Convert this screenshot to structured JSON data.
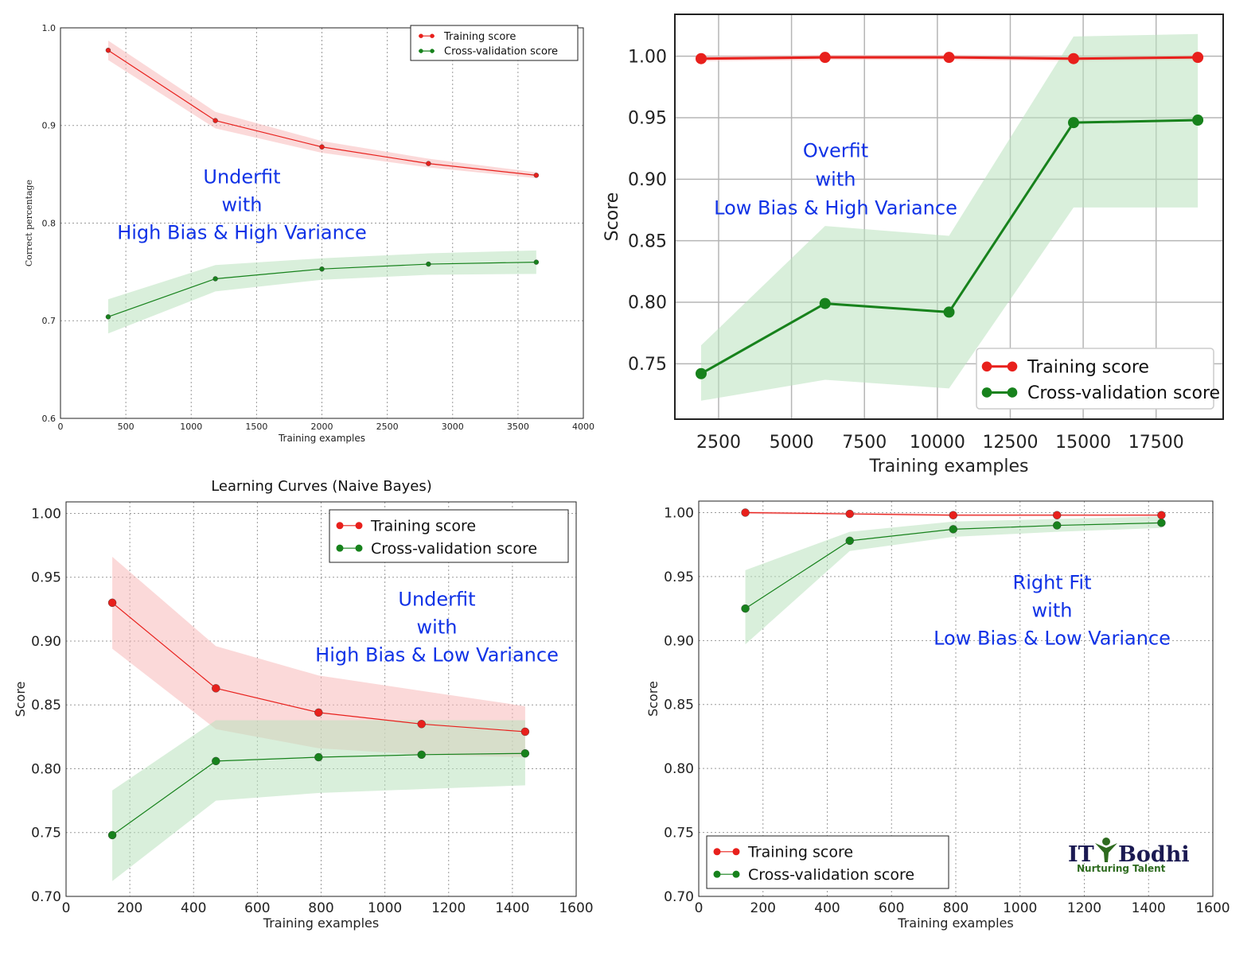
{
  "colors": {
    "training": "#e8201c",
    "cv": "#17821c",
    "training_band": "#f7b9b9",
    "cv_band": "#b9e2bd",
    "annotation": "#1032e6",
    "logo_dark": "#1b1a52",
    "logo_green": "#2e6b1f"
  },
  "logo": {
    "text_main": "IT Bodhi",
    "tagline": "Nurturing Talent",
    "icon": "person-arms-raised-icon"
  },
  "chart_data": [
    {
      "type": "line",
      "title": "",
      "xlabel": "Training examples",
      "ylabel": "Correct percentage",
      "xlim": [
        0,
        4000
      ],
      "ylim": [
        0.6,
        1.0
      ],
      "xticks": [
        "0",
        "500",
        "1000",
        "1500",
        "2000",
        "2500",
        "3000",
        "3500",
        "4000"
      ],
      "yticks": [
        "0.6",
        "0.7",
        "0.8",
        "0.9",
        "1.0"
      ],
      "grid": "dotted",
      "legend": "top-right",
      "annotation": [
        "Underfit",
        "with",
        "High Bias & High Variance"
      ],
      "x": [
        365,
        1185,
        2000,
        2815,
        3640
      ],
      "series": [
        {
          "name": "Training score",
          "values": [
            0.977,
            0.905,
            0.878,
            0.861,
            0.849
          ],
          "lower": [
            0.967,
            0.897,
            0.872,
            0.857,
            0.846
          ],
          "upper": [
            0.987,
            0.914,
            0.884,
            0.866,
            0.852
          ]
        },
        {
          "name": "Cross-validation score",
          "values": [
            0.704,
            0.743,
            0.753,
            0.758,
            0.76
          ],
          "lower": [
            0.687,
            0.73,
            0.742,
            0.747,
            0.748
          ],
          "upper": [
            0.722,
            0.757,
            0.764,
            0.769,
            0.772
          ]
        }
      ]
    },
    {
      "type": "line",
      "title": "",
      "xlabel": "Training examples",
      "ylabel": "Score",
      "xlim": [
        1000,
        19800
      ],
      "ylim": [
        0.705,
        1.034
      ],
      "xticks": [
        "2500",
        "5000",
        "7500",
        "10000",
        "12500",
        "15000",
        "17500"
      ],
      "yticks": [
        "0.75",
        "0.80",
        "0.85",
        "0.90",
        "0.95",
        "1.00"
      ],
      "grid": "solid",
      "legend": "lower-right",
      "annotation": [
        "Overfit",
        "with",
        "Low Bias & High Variance"
      ],
      "x": [
        1900,
        6150,
        10400,
        14670,
        18930
      ],
      "series": [
        {
          "name": "Training score",
          "values": [
            0.998,
            0.999,
            0.999,
            0.998,
            0.999
          ],
          "lower": [
            0.996,
            0.997,
            0.997,
            0.996,
            0.997
          ],
          "upper": [
            1.0,
            1.001,
            1.001,
            1.0,
            1.001
          ]
        },
        {
          "name": "Cross-validation score",
          "values": [
            0.742,
            0.799,
            0.792,
            0.946,
            0.948
          ],
          "lower": [
            0.72,
            0.737,
            0.73,
            0.877,
            0.877
          ],
          "upper": [
            0.765,
            0.862,
            0.854,
            1.016,
            1.018
          ]
        }
      ]
    },
    {
      "type": "line",
      "title": "Learning Curves (Naive Bayes)",
      "xlabel": "Training examples",
      "ylabel": "Score",
      "xlim": [
        0,
        1600
      ],
      "ylim": [
        0.7,
        1.009
      ],
      "xticks": [
        "0",
        "200",
        "400",
        "600",
        "800",
        "1000",
        "1200",
        "1400",
        "1600"
      ],
      "yticks": [
        "0.70",
        "0.75",
        "0.80",
        "0.85",
        "0.90",
        "0.95",
        "1.00"
      ],
      "grid": "dotted",
      "legend": "top-right",
      "annotation": [
        "Underfit",
        "with",
        "High Bias & Low Variance"
      ],
      "x": [
        145,
        470,
        792,
        1115,
        1440
      ],
      "series": [
        {
          "name": "Training score",
          "values": [
            0.93,
            0.863,
            0.844,
            0.835,
            0.829
          ],
          "lower": [
            0.894,
            0.831,
            0.816,
            0.811,
            0.809
          ],
          "upper": [
            0.966,
            0.896,
            0.873,
            0.861,
            0.849
          ]
        },
        {
          "name": "Cross-validation score",
          "values": [
            0.748,
            0.806,
            0.809,
            0.811,
            0.812
          ],
          "lower": [
            0.712,
            0.775,
            0.781,
            0.784,
            0.787
          ],
          "upper": [
            0.783,
            0.838,
            0.838,
            0.838,
            0.838
          ]
        }
      ]
    },
    {
      "type": "line",
      "title": "",
      "xlabel": "Training examples",
      "ylabel": "Score",
      "xlim": [
        0,
        1600
      ],
      "ylim": [
        0.7,
        1.009
      ],
      "xticks": [
        "0",
        "200",
        "400",
        "600",
        "800",
        "1000",
        "1200",
        "1400",
        "1600"
      ],
      "yticks": [
        "0.70",
        "0.75",
        "0.80",
        "0.85",
        "0.90",
        "0.95",
        "1.00"
      ],
      "grid": "dotted",
      "legend": "lower-left",
      "annotation": [
        "Right Fit",
        "with",
        "Low Bias & Low Variance"
      ],
      "x": [
        145,
        470,
        792,
        1115,
        1440
      ],
      "series": [
        {
          "name": "Training score",
          "values": [
            1.0,
            0.999,
            0.998,
            0.998,
            0.998
          ],
          "lower": [
            0.999,
            0.998,
            0.997,
            0.997,
            0.997
          ],
          "upper": [
            1.001,
            1.0,
            0.999,
            0.999,
            0.999
          ]
        },
        {
          "name": "Cross-validation score",
          "values": [
            0.925,
            0.978,
            0.987,
            0.99,
            0.992
          ],
          "lower": [
            0.897,
            0.97,
            0.981,
            0.985,
            0.988
          ],
          "upper": [
            0.955,
            0.985,
            0.993,
            0.995,
            0.997
          ]
        }
      ]
    }
  ]
}
